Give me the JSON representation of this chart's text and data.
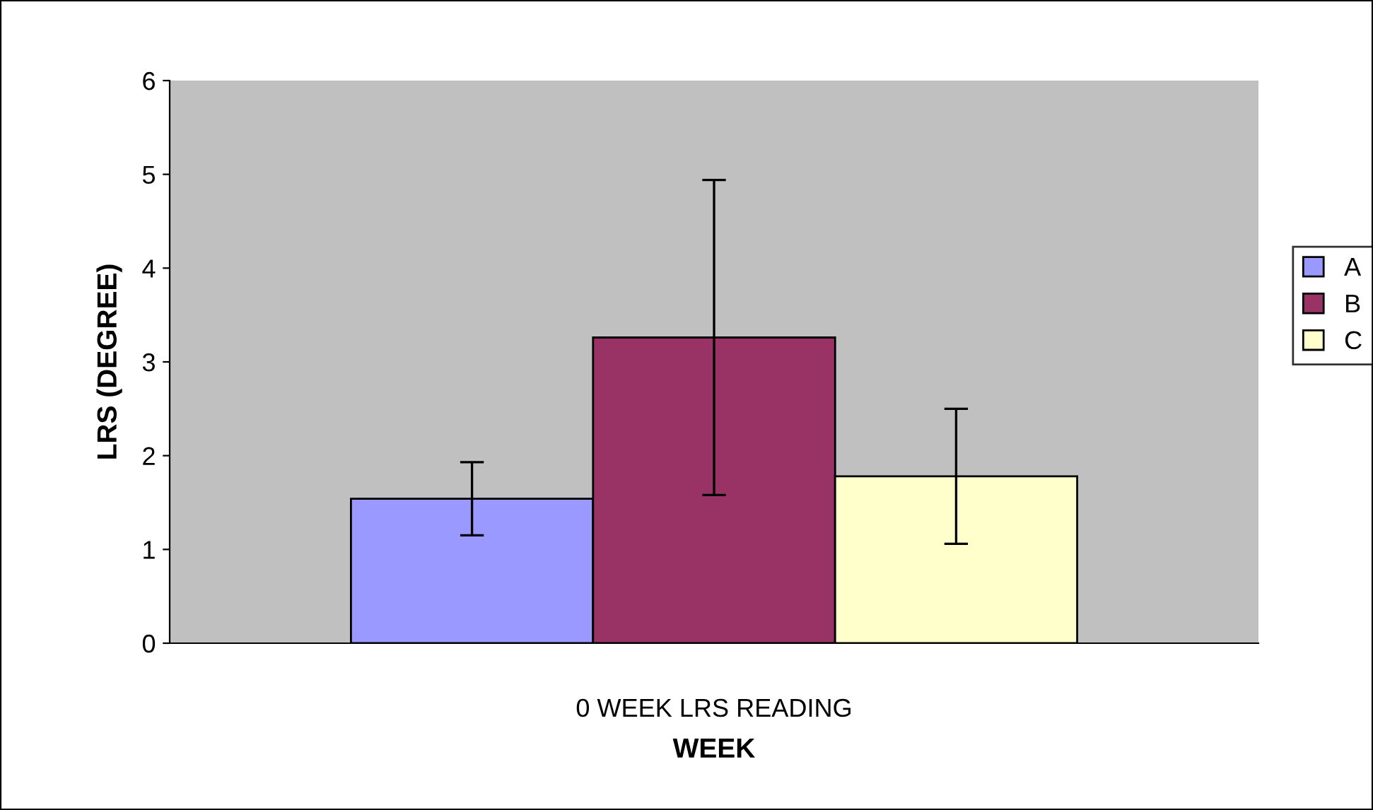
{
  "chart_data": {
    "type": "bar",
    "xlabel": "WEEK",
    "ylabel": "LRS (DEGREE)",
    "categories": [
      "0 WEEK LRS READING"
    ],
    "series": [
      {
        "name": "A",
        "color": "#9999ff",
        "values": [
          1.54
        ],
        "errors": [
          0.39
        ]
      },
      {
        "name": "B",
        "color": "#993366",
        "values": [
          3.26
        ],
        "errors": [
          1.68
        ]
      },
      {
        "name": "C",
        "color": "#ffffcc",
        "values": [
          1.78
        ],
        "errors": [
          0.72
        ]
      }
    ],
    "ylim": [
      0,
      6
    ],
    "yticks": [
      0,
      1,
      2,
      3,
      4,
      5,
      6
    ],
    "grid": false,
    "legend": "right"
  }
}
